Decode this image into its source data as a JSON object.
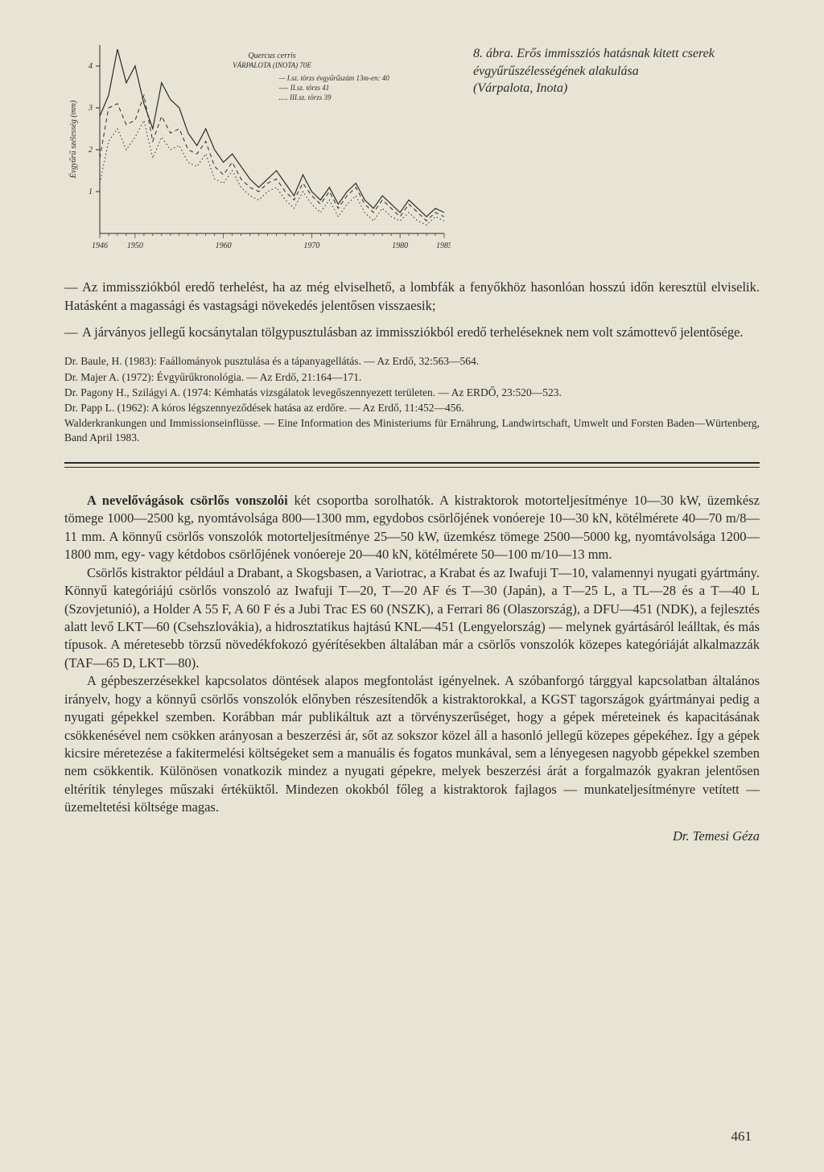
{
  "figure": {
    "caption_number": "8. ábra.",
    "caption_text": "Erős immissziós hatásnak kitett cserek évgyűrűszélességének alakulása",
    "caption_loc": "(Várpalota, Inota)",
    "species": "Quercus cerris",
    "site": "VÁRPALOTA (INOTA) 70E",
    "legend": [
      {
        "key": "— I.sz. törzs évgyűrűszám 13m-en: 40"
      },
      {
        "key": "---- II.sz. törzs",
        "value": "41"
      },
      {
        "key": "..... III.sz. törzs",
        "value": "39"
      }
    ],
    "ylabel": "Évgyűrű szélesség (mm)",
    "xlim": [
      1946,
      1985
    ],
    "ylim": [
      0,
      4.5
    ],
    "xticks": [
      1946,
      1950,
      1960,
      1970,
      1980,
      1985
    ],
    "yticks": [
      1,
      2,
      3,
      4
    ],
    "series": {
      "torzs1": {
        "style": "solid",
        "color": "#2a2a2a",
        "width": 1.2,
        "points": [
          [
            1946,
            2.8
          ],
          [
            1947,
            3.3
          ],
          [
            1948,
            4.4
          ],
          [
            1949,
            3.6
          ],
          [
            1950,
            4.0
          ],
          [
            1951,
            3.1
          ],
          [
            1952,
            2.5
          ],
          [
            1953,
            3.6
          ],
          [
            1954,
            3.2
          ],
          [
            1955,
            3.0
          ],
          [
            1956,
            2.4
          ],
          [
            1957,
            2.1
          ],
          [
            1958,
            2.5
          ],
          [
            1959,
            2.0
          ],
          [
            1960,
            1.7
          ],
          [
            1961,
            1.9
          ],
          [
            1962,
            1.6
          ],
          [
            1963,
            1.3
          ],
          [
            1964,
            1.1
          ],
          [
            1965,
            1.3
          ],
          [
            1966,
            1.5
          ],
          [
            1967,
            1.2
          ],
          [
            1968,
            0.9
          ],
          [
            1969,
            1.4
          ],
          [
            1970,
            1.0
          ],
          [
            1971,
            0.8
          ],
          [
            1972,
            1.1
          ],
          [
            1973,
            0.7
          ],
          [
            1974,
            1.0
          ],
          [
            1975,
            1.2
          ],
          [
            1976,
            0.8
          ],
          [
            1977,
            0.6
          ],
          [
            1978,
            0.9
          ],
          [
            1979,
            0.7
          ],
          [
            1980,
            0.5
          ],
          [
            1981,
            0.8
          ],
          [
            1982,
            0.6
          ],
          [
            1983,
            0.4
          ],
          [
            1984,
            0.6
          ],
          [
            1985,
            0.5
          ]
        ]
      },
      "torzs2": {
        "style": "dashed",
        "color": "#2a2a2a",
        "width": 1.0,
        "points": [
          [
            1946,
            1.8
          ],
          [
            1947,
            3.0
          ],
          [
            1948,
            3.1
          ],
          [
            1949,
            2.6
          ],
          [
            1950,
            2.7
          ],
          [
            1951,
            3.3
          ],
          [
            1952,
            2.2
          ],
          [
            1953,
            2.8
          ],
          [
            1954,
            2.4
          ],
          [
            1955,
            2.5
          ],
          [
            1956,
            2.0
          ],
          [
            1957,
            1.9
          ],
          [
            1958,
            2.2
          ],
          [
            1959,
            1.6
          ],
          [
            1960,
            1.4
          ],
          [
            1961,
            1.7
          ],
          [
            1962,
            1.3
          ],
          [
            1963,
            1.1
          ],
          [
            1964,
            1.0
          ],
          [
            1965,
            1.2
          ],
          [
            1966,
            1.3
          ],
          [
            1967,
            1.0
          ],
          [
            1968,
            0.8
          ],
          [
            1969,
            1.2
          ],
          [
            1970,
            0.9
          ],
          [
            1971,
            0.7
          ],
          [
            1972,
            1.0
          ],
          [
            1973,
            0.6
          ],
          [
            1974,
            0.9
          ],
          [
            1975,
            1.1
          ],
          [
            1976,
            0.7
          ],
          [
            1977,
            0.5
          ],
          [
            1978,
            0.8
          ],
          [
            1979,
            0.6
          ],
          [
            1980,
            0.4
          ],
          [
            1981,
            0.7
          ],
          [
            1982,
            0.5
          ],
          [
            1983,
            0.3
          ],
          [
            1984,
            0.5
          ],
          [
            1985,
            0.4
          ]
        ]
      },
      "torzs3": {
        "style": "dotted",
        "color": "#2a2a2a",
        "width": 1.0,
        "points": [
          [
            1946,
            1.2
          ],
          [
            1947,
            2.2
          ],
          [
            1948,
            2.5
          ],
          [
            1949,
            2.0
          ],
          [
            1950,
            2.3
          ],
          [
            1951,
            2.7
          ],
          [
            1952,
            1.8
          ],
          [
            1953,
            2.3
          ],
          [
            1954,
            2.0
          ],
          [
            1955,
            2.1
          ],
          [
            1956,
            1.7
          ],
          [
            1957,
            1.6
          ],
          [
            1958,
            1.9
          ],
          [
            1959,
            1.3
          ],
          [
            1960,
            1.2
          ],
          [
            1961,
            1.5
          ],
          [
            1962,
            1.1
          ],
          [
            1963,
            0.9
          ],
          [
            1964,
            0.8
          ],
          [
            1965,
            1.0
          ],
          [
            1966,
            1.1
          ],
          [
            1967,
            0.8
          ],
          [
            1968,
            0.6
          ],
          [
            1969,
            1.0
          ],
          [
            1970,
            0.7
          ],
          [
            1971,
            0.5
          ],
          [
            1972,
            0.8
          ],
          [
            1973,
            0.4
          ],
          [
            1974,
            0.7
          ],
          [
            1975,
            0.9
          ],
          [
            1976,
            0.5
          ],
          [
            1977,
            0.3
          ],
          [
            1978,
            0.6
          ],
          [
            1979,
            0.4
          ],
          [
            1980,
            0.3
          ],
          [
            1981,
            0.5
          ],
          [
            1982,
            0.3
          ],
          [
            1983,
            0.2
          ],
          [
            1984,
            0.4
          ],
          [
            1985,
            0.3
          ]
        ]
      }
    },
    "background": "#e8e4d4",
    "axis_color": "#2a2a2a",
    "font_size_axis": 10,
    "font_size_legend": 9
  },
  "bullets": [
    "Az immissziókból eredő terhelést, ha az még elviselhető, a lombfák a fenyőkhöz hasonlóan hosszú időn keresztül elviselik. Hatásként a magassági és vastagsági növekedés jelentősen visszaesik;",
    "A járványos jellegű kocsánytalan tölgypusztulásban az immissziókból eredő terheléseknek nem volt számottevő jelentősége."
  ],
  "refs": [
    "Dr. Baule, H. (1983): Faállományok pusztulása és a tápanyagellátás. — Az Erdő, 32:563—564.",
    "Dr. Majer A. (1972): Évgyűrűkronológia. — Az Erdő, 21:164—171.",
    "Dr. Pagony H., Szilágyi A. (1974: Kémhatás vizsgálatok levegőszennyezett területen. — Az ERDŐ, 23:520—523.",
    "Dr. Papp L. (1962): A kóros légszennyeződések hatása az erdőre. — Az Erdő, 11:452—456.",
    "Walderkrankungen und Immissionseinflüsse. — Eine Information des Ministeriums für Ernährung, Landwirtschaft, Umwelt und Forsten Baden—Würtenberg, Band April 1983."
  ],
  "body": {
    "p1_lead": "A nevelővágások csörlős vonszolói",
    "p1": " két csoportba sorolhatók. A kistraktorok motorteljesítménye 10—30 kW, üzemkész tömege 1000—2500 kg, nyomtávolsága 800—1300 mm, egydobos csörlőjének vonóereje 10—30 kN, kötélmérete 40—70 m/8—11 mm. A könnyű csörlős vonszolók motorteljesítménye 25—50 kW, üzemkész tömege 2500—5000 kg, nyomtávolsága 1200—1800 mm, egy- vagy kétdobos csörlőjének vonóereje 20—40 kN, kötélmérete 50—100 m/10—13 mm.",
    "p2": "Csörlős kistraktor például a Drabant, a Skogsbasen, a Variotrac, a Krabat és az Iwafuji T—10, valamennyi nyugati gyártmány. Könnyű kategóriájú csörlős vonszoló az Iwafuji T—20, T—20 AF és T—30 (Japán), a T—25 L, a TL—28 és a T—40 L (Szovjetunió), a Holder A 55 F, A 60 F és a Jubi Trac ES 60 (NSZK), a Ferrari 86 (Olaszország), a DFU—451 (NDK), a fejlesztés alatt levő LKT—60 (Csehszlovákia), a hidrosztatikus hajtású KNL—451 (Lengyelország) — melynek gyártásáról leálltak, és más típusok. A méretesebb törzsű növedékfokozó gyérítésekben általában már a csörlős vonszolók közepes kategóriáját alkalmazzák (TAF—65 D, LKT—80).",
    "p3": "A gépbeszerzésekkel kapcsolatos döntések alapos megfontolást igényelnek. A szóbanforgó tárggyal kapcsolatban általános irányelv, hogy a könnyű csörlős vonszolók előnyben részesítendők a kistraktorokkal, a KGST tagországok gyártmányai pedig a nyugati gépekkel szemben. Korábban már publikáltuk azt a törvényszerűséget, hogy a gépek méreteinek és kapacitásának csökkenésével nem csökken arányosan a beszerzési ár, sőt az sokszor közel áll a hasonló jellegű közepes gépekéhez. Így a gépek kicsire méretezése a fakitermelési költségeket sem a manuális és fogatos munkával, sem a lényegesen nagyobb gépekkel szemben nem csökkentik. Különösen vonatkozik mindez a nyugati gépekre, melyek beszerzési árát a forgalmazók gyakran jelentősen eltérítik tényleges műszaki értéküktől. Mindezen okokból főleg a kistraktorok fajlagos — munkateljesítményre vetített — üzemeltetési költsége magas."
  },
  "signature": "Dr. Temesi Géza",
  "page_number": "461"
}
